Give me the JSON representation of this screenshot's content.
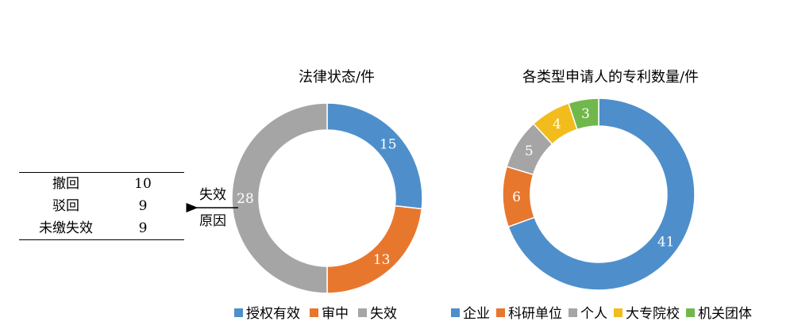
{
  "table": {
    "rows": [
      {
        "label": "撤回",
        "value": "10"
      },
      {
        "label": "驳回",
        "value": "9"
      },
      {
        "label": "未缴失效",
        "value": "9"
      }
    ]
  },
  "arrow": {
    "line1": "失效",
    "line2": "原因"
  },
  "chart_data": [
    {
      "type": "pie",
      "title": "法律状态/件",
      "categories": [
        "授权有效",
        "审中",
        "失效"
      ],
      "values": [
        15,
        13,
        28
      ],
      "colors": [
        "#4e8fcb",
        "#e8772e",
        "#a5a5a5"
      ],
      "legend": "bottom"
    },
    {
      "type": "pie",
      "title": "各类型申请人的专利数量/件",
      "categories": [
        "企业",
        "科研单位",
        "个人",
        "大专院校",
        "机关团体"
      ],
      "values": [
        41,
        6,
        5,
        4,
        3
      ],
      "colors": [
        "#4e8fcb",
        "#e8772e",
        "#a5a5a5",
        "#f2bc1c",
        "#71b84c"
      ],
      "legend": "bottom"
    }
  ]
}
